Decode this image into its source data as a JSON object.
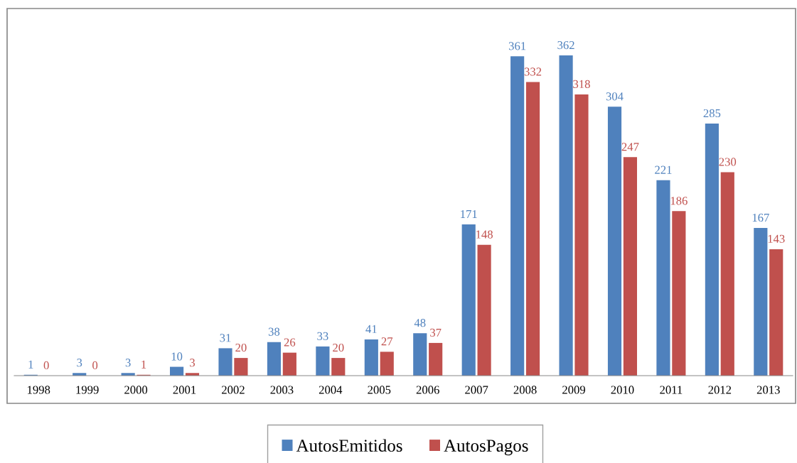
{
  "chart_data": {
    "type": "bar",
    "categories": [
      "1998",
      "1999",
      "2000",
      "2001",
      "2002",
      "2003",
      "2004",
      "2005",
      "2006",
      "2007",
      "2008",
      "2009",
      "2010",
      "2011",
      "2012",
      "2013"
    ],
    "series": [
      {
        "name": "AutosEmitidos",
        "color": "#4f81bd",
        "values": [
          1,
          3,
          3,
          10,
          31,
          38,
          33,
          41,
          48,
          171,
          361,
          362,
          304,
          221,
          285,
          167
        ]
      },
      {
        "name": "AutosPagos",
        "color": "#c0504d",
        "values": [
          0,
          0,
          1,
          3,
          20,
          26,
          20,
          27,
          37,
          148,
          332,
          318,
          247,
          186,
          230,
          143
        ]
      }
    ],
    "data_labels": true,
    "legend": "bottom",
    "grid": false
  }
}
